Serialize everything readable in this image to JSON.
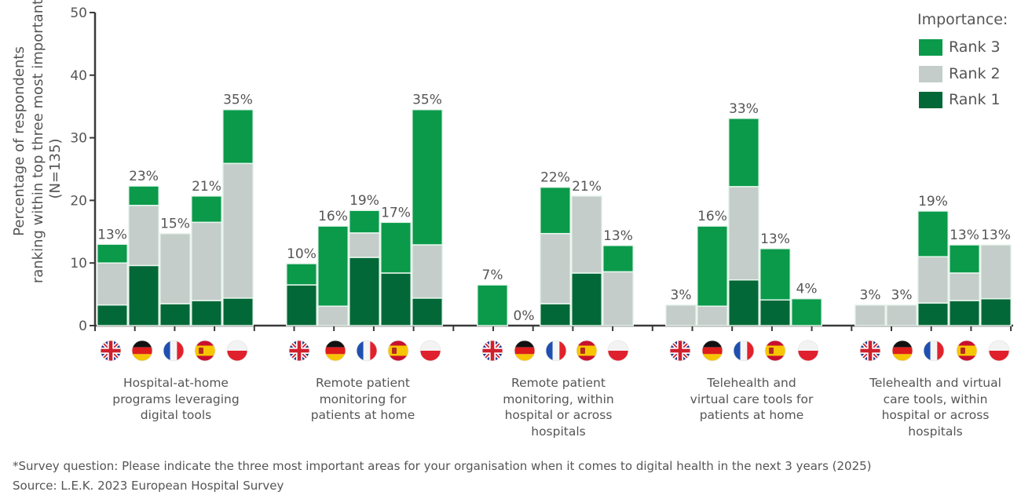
{
  "chart_data": {
    "type": "bar",
    "stacked": true,
    "title": "",
    "ylabel": "Percentage of respondents ranking within top three most important (N=135)",
    "ylabel_lines": [
      "Percentage of respondents",
      "ranking within top three most important",
      "(N=135)"
    ],
    "ylim": [
      0,
      50
    ],
    "yticks": [
      0,
      10,
      20,
      30,
      40,
      50
    ],
    "grid": false,
    "legend": {
      "title": "Importance:",
      "position": "top-right",
      "entries": [
        {
          "name": "Rank 3",
          "color": "#0a9a4a"
        },
        {
          "name": "Rank 2",
          "color": "#c4cdca"
        },
        {
          "name": "Rank 1",
          "color": "#036837"
        }
      ]
    },
    "countries": [
      {
        "code": "UK",
        "flag": "uk-flag"
      },
      {
        "code": "DE",
        "flag": "germany-flag"
      },
      {
        "code": "FR",
        "flag": "france-flag"
      },
      {
        "code": "ES",
        "flag": "spain-flag"
      },
      {
        "code": "PL",
        "flag": "poland-flag"
      }
    ],
    "groups": [
      {
        "category": "Hospital-at-home programs leveraging digital tools",
        "label_lines": [
          "Hospital-at-home",
          "programs leveraging",
          "digital tools"
        ],
        "bars": [
          {
            "country": "UK",
            "rank1": 3.3,
            "rank2": 6.7,
            "rank3": 3.0,
            "total_label": "13%"
          },
          {
            "country": "DE",
            "rank1": 9.6,
            "rank2": 9.6,
            "rank3": 3.1,
            "total_label": "23%"
          },
          {
            "country": "FR",
            "rank1": 3.5,
            "rank2": 11.2,
            "rank3": 0,
            "total_label": "15%"
          },
          {
            "country": "ES",
            "rank1": 4.0,
            "rank2": 12.5,
            "rank3": 4.2,
            "total_label": "21%"
          },
          {
            "country": "PL",
            "rank1": 4.4,
            "rank2": 21.5,
            "rank3": 8.6,
            "total_label": "35%"
          }
        ]
      },
      {
        "category": "Remote patient monitoring for patients at home",
        "label_lines": [
          "Remote patient",
          "monitoring for",
          "patients at home"
        ],
        "bars": [
          {
            "country": "UK",
            "rank1": 6.5,
            "rank2": 0,
            "rank3": 3.4,
            "total_label": "10%"
          },
          {
            "country": "DE",
            "rank1": 0,
            "rank2": 3.1,
            "rank3": 12.8,
            "total_label": "16%"
          },
          {
            "country": "FR",
            "rank1": 10.9,
            "rank2": 3.9,
            "rank3": 3.6,
            "total_label": "19%"
          },
          {
            "country": "ES",
            "rank1": 8.4,
            "rank2": 0,
            "rank3": 8.1,
            "total_label": "17%"
          },
          {
            "country": "PL",
            "rank1": 4.4,
            "rank2": 8.5,
            "rank3": 21.6,
            "total_label": "35%"
          }
        ]
      },
      {
        "category": "Remote patient monitoring, within hospital or across hospitals",
        "label_lines": [
          "Remote patient",
          "monitoring, within",
          "hospital or across",
          "hospitals"
        ],
        "bars": [
          {
            "country": "UK",
            "rank1": 0,
            "rank2": 0,
            "rank3": 6.5,
            "total_label": "7%"
          },
          {
            "country": "DE",
            "rank1": 0,
            "rank2": 0,
            "rank3": 0,
            "total_label": "0%"
          },
          {
            "country": "FR",
            "rank1": 3.5,
            "rank2": 11.2,
            "rank3": 7.4,
            "total_label": "22%"
          },
          {
            "country": "ES",
            "rank1": 8.4,
            "rank2": 12.3,
            "rank3": 0,
            "total_label": "21%"
          },
          {
            "country": "PL",
            "rank1": 0,
            "rank2": 8.6,
            "rank3": 4.2,
            "total_label": "13%"
          }
        ]
      },
      {
        "category": "Telehealth and virtual care tools for patients at home",
        "label_lines": [
          "Telehealth and",
          "virtual care tools for",
          "patients at home"
        ],
        "bars": [
          {
            "country": "UK",
            "rank1": 0,
            "rank2": 3.3,
            "rank3": 0,
            "total_label": "3%"
          },
          {
            "country": "DE",
            "rank1": 0,
            "rank2": 3.1,
            "rank3": 12.8,
            "total_label": "16%"
          },
          {
            "country": "FR",
            "rank1": 7.3,
            "rank2": 14.9,
            "rank3": 10.9,
            "total_label": "33%"
          },
          {
            "country": "ES",
            "rank1": 4.1,
            "rank2": 0,
            "rank3": 8.2,
            "total_label": "13%"
          },
          {
            "country": "PL",
            "rank1": 0,
            "rank2": 0,
            "rank3": 4.3,
            "total_label": "4%"
          }
        ]
      },
      {
        "category": "Telehealth and virtual care tools, within hospital or across hospitals",
        "label_lines": [
          "Telehealth and virtual",
          "care tools, within",
          "hospital or across",
          "hospitals"
        ],
        "bars": [
          {
            "country": "UK",
            "rank1": 0,
            "rank2": 3.3,
            "rank3": 0,
            "total_label": "3%"
          },
          {
            "country": "DE",
            "rank1": 0,
            "rank2": 3.3,
            "rank3": 0,
            "total_label": "3%"
          },
          {
            "country": "FR",
            "rank1": 3.6,
            "rank2": 7.4,
            "rank3": 7.3,
            "total_label": "19%"
          },
          {
            "country": "ES",
            "rank1": 4.0,
            "rank2": 4.4,
            "rank3": 4.5,
            "total_label": "13%"
          },
          {
            "country": "PL",
            "rank1": 4.3,
            "rank2": 8.6,
            "rank3": 0,
            "total_label": "13%"
          }
        ]
      }
    ]
  },
  "legend": {
    "title": "Importance:",
    "items": [
      {
        "label": "Rank 3",
        "color": "#0a9a4a"
      },
      {
        "label": "Rank 2",
        "color": "#c4cdca"
      },
      {
        "label": "Rank 1",
        "color": "#036837"
      }
    ]
  },
  "footer": {
    "note": "*Survey question: Please indicate the three most important areas for your organisation when it comes to digital health in the next 3 years (2025)",
    "source": "Source: L.E.K. 2023 European Hospital Survey"
  }
}
